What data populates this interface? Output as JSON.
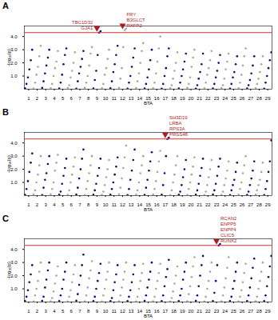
{
  "chart_data": [
    {
      "type": "scatter",
      "title": "A",
      "x_label": "BTA",
      "y_label": "-log₁₀(p)",
      "categories": [
        1,
        2,
        3,
        4,
        5,
        6,
        7,
        8,
        9,
        10,
        11,
        12,
        13,
        14,
        15,
        16,
        17,
        18,
        19,
        20,
        21,
        22,
        23,
        24,
        25,
        26,
        27,
        28,
        29
      ],
      "colors": [
        "#0b0b7a",
        "#a6a6a6"
      ],
      "ylim": [
        0,
        4.8
      ],
      "yticks": [
        1,
        2,
        3,
        4
      ],
      "threshold": 4.3,
      "values": [
        [
          0.08,
          0.4,
          0.9,
          1.5,
          2.2,
          3.0
        ],
        [
          0.05,
          0.5,
          1.1,
          1.7,
          2.5,
          3.3
        ],
        [
          0.1,
          0.6,
          1.2,
          1.8,
          2.4,
          3.0
        ],
        [
          0.07,
          0.4,
          1.0,
          1.6,
          2.1,
          2.9
        ],
        [
          0.06,
          0.5,
          1.1,
          1.9,
          2.6,
          3.1
        ],
        [
          0.09,
          0.3,
          0.9,
          1.4,
          2.0,
          2.8
        ],
        [
          0.05,
          0.6,
          1.2,
          1.7,
          2.3,
          2.9
        ],
        [
          0.1,
          0.5,
          1.0,
          1.8,
          2.7,
          3.2
        ],
        [
          0.06,
          0.7,
          1.4,
          2.6,
          4.3,
          4.4
        ],
        [
          0.08,
          0.4,
          1.1,
          1.6,
          2.3,
          3.0
        ],
        [
          0.07,
          0.6,
          1.3,
          1.9,
          2.6,
          3.3
        ],
        [
          0.1,
          0.8,
          1.6,
          3.2,
          4.5,
          4.6
        ],
        [
          0.05,
          0.5,
          1.0,
          1.7,
          2.4,
          3.1
        ],
        [
          0.09,
          0.6,
          1.2,
          2.0,
          2.9,
          3.5
        ],
        [
          0.06,
          0.4,
          0.9,
          1.5,
          2.2,
          3.0
        ],
        [
          0.08,
          0.5,
          1.2,
          2.1,
          3.1,
          4.0
        ],
        [
          0.05,
          0.4,
          1.0,
          1.6,
          2.5,
          3.1
        ],
        [
          0.07,
          0.3,
          0.8,
          1.4,
          2.0,
          2.8
        ],
        [
          0.06,
          0.5,
          1.0,
          1.5,
          2.1,
          2.7
        ],
        [
          0.1,
          0.4,
          0.9,
          1.7,
          2.4,
          3.0
        ],
        [
          0.05,
          0.3,
          0.8,
          1.3,
          1.9,
          2.7
        ],
        [
          0.07,
          0.5,
          1.1,
          1.6,
          2.2,
          2.9
        ],
        [
          0.06,
          0.4,
          0.9,
          1.4,
          2.0,
          2.6
        ],
        [
          0.09,
          0.3,
          0.8,
          1.5,
          2.1,
          2.7
        ],
        [
          0.05,
          0.4,
          0.9,
          1.3,
          1.9,
          2.5
        ],
        [
          0.08,
          0.5,
          1.1,
          1.8,
          2.5,
          3.1
        ],
        [
          0.06,
          0.3,
          0.7,
          1.2,
          1.8,
          2.5
        ],
        [
          0.07,
          0.4,
          0.8,
          1.3,
          1.9,
          2.5
        ],
        [
          0.05,
          0.5,
          1.0,
          1.6,
          2.2,
          2.8
        ]
      ],
      "annotations": [
        {
          "x": 9,
          "y": 4.4,
          "labels": [
            "GJA1",
            "TBC1D32"
          ]
        },
        {
          "x": 12,
          "y": 4.6,
          "labels": [
            "RXFP2",
            "B3GLCT",
            "FRY"
          ]
        }
      ]
    },
    {
      "type": "scatter",
      "title": "B",
      "x_label": "BTA",
      "y_label": "-log₁₀(p)",
      "categories": [
        1,
        2,
        3,
        4,
        5,
        6,
        7,
        8,
        9,
        10,
        11,
        12,
        13,
        14,
        15,
        16,
        17,
        18,
        19,
        20,
        21,
        22,
        23,
        24,
        25,
        26,
        27,
        28,
        29
      ],
      "colors": [
        "#0b0b7a",
        "#a6a6a6"
      ],
      "ylim": [
        0,
        4.8
      ],
      "yticks": [
        1,
        2,
        3,
        4
      ],
      "threshold": 4.3,
      "values": [
        [
          0.06,
          0.5,
          1.1,
          1.8,
          2.5,
          3.2
        ],
        [
          0.08,
          0.4,
          1.0,
          1.6,
          2.3,
          3.0
        ],
        [
          0.05,
          0.6,
          1.2,
          1.7,
          2.4,
          3.0
        ],
        [
          0.1,
          0.5,
          1.0,
          1.9,
          2.5,
          3.1
        ],
        [
          0.07,
          0.3,
          0.9,
          1.5,
          2.1,
          2.8
        ],
        [
          0.06,
          0.4,
          1.0,
          1.6,
          2.2,
          2.9
        ],
        [
          0.09,
          0.6,
          1.3,
          2.0,
          2.8,
          3.5
        ],
        [
          0.05,
          0.5,
          1.1,
          1.7,
          2.3,
          3.0
        ],
        [
          0.08,
          0.4,
          0.9,
          1.5,
          2.1,
          2.8
        ],
        [
          0.06,
          0.3,
          0.8,
          1.4,
          2.0,
          2.7
        ],
        [
          0.07,
          0.5,
          1.0,
          1.6,
          2.2,
          2.9
        ],
        [
          0.1,
          0.6,
          1.3,
          2.1,
          2.9,
          3.8
        ],
        [
          0.05,
          0.5,
          1.2,
          1.9,
          2.7,
          3.5
        ],
        [
          0.08,
          0.4,
          1.0,
          1.7,
          2.3,
          3.0
        ],
        [
          0.06,
          0.6,
          1.2,
          1.9,
          2.6,
          3.3
        ],
        [
          0.09,
          0.5,
          1.1,
          1.8,
          2.6,
          3.4
        ],
        [
          0.07,
          0.8,
          1.7,
          3.0,
          4.3,
          4.4
        ],
        [
          0.05,
          0.4,
          1.0,
          1.6,
          2.3,
          3.0
        ],
        [
          0.08,
          0.3,
          0.8,
          1.4,
          2.0,
          2.7
        ],
        [
          0.06,
          0.5,
          1.0,
          1.6,
          2.2,
          2.9
        ],
        [
          0.07,
          0.4,
          0.9,
          1.5,
          2.1,
          2.8
        ],
        [
          0.05,
          0.3,
          0.8,
          1.4,
          2.0,
          2.7
        ],
        [
          0.09,
          0.4,
          0.9,
          1.5,
          2.2,
          2.8
        ],
        [
          0.06,
          0.3,
          0.8,
          1.3,
          1.9,
          2.6
        ],
        [
          0.05,
          0.4,
          0.8,
          1.2,
          1.8,
          2.5
        ],
        [
          0.08,
          0.5,
          1.0,
          1.7,
          2.3,
          3.0
        ],
        [
          0.06,
          0.3,
          0.8,
          1.3,
          1.9,
          2.6
        ],
        [
          0.07,
          0.4,
          0.8,
          1.2,
          1.8,
          2.5
        ],
        [
          0.05,
          0.5,
          1.1,
          1.8,
          2.6,
          4.2
        ]
      ],
      "annotations": [
        {
          "x": 17,
          "y": 4.4,
          "labels": [
            "PRSS48",
            "RPS3A",
            "LRBA",
            "SH3D19"
          ]
        }
      ]
    },
    {
      "type": "scatter",
      "title": "C",
      "x_label": "BTA",
      "y_label": "-log₁₀(p)",
      "categories": [
        1,
        2,
        3,
        4,
        5,
        6,
        7,
        8,
        9,
        10,
        11,
        12,
        13,
        14,
        15,
        16,
        17,
        18,
        19,
        20,
        21,
        22,
        23,
        24,
        25,
        26,
        27,
        28,
        29
      ],
      "colors": [
        "#0b0b7a",
        "#a6a6a6"
      ],
      "ylim": [
        0,
        4.8
      ],
      "yticks": [
        1,
        2,
        3,
        4
      ],
      "threshold": 4.3,
      "values": [
        [
          0.07,
          0.4,
          0.9,
          1.5,
          2.1,
          2.8
        ],
        [
          0.05,
          0.5,
          1.0,
          1.6,
          2.3,
          3.0
        ],
        [
          0.09,
          0.4,
          1.1,
          1.7,
          2.4,
          3.0
        ],
        [
          0.06,
          0.3,
          0.8,
          1.4,
          2.0,
          2.7
        ],
        [
          0.08,
          0.5,
          1.0,
          1.7,
          2.3,
          3.0
        ],
        [
          0.05,
          0.4,
          0.9,
          1.5,
          2.1,
          2.8
        ],
        [
          0.1,
          0.6,
          1.3,
          2.0,
          2.8,
          3.6
        ],
        [
          0.06,
          0.5,
          1.1,
          1.8,
          2.4,
          3.1
        ],
        [
          0.07,
          0.4,
          1.0,
          1.6,
          2.2,
          2.9
        ],
        [
          0.05,
          0.5,
          1.0,
          1.7,
          2.3,
          3.0
        ],
        [
          0.08,
          0.3,
          0.9,
          1.5,
          2.1,
          2.8
        ],
        [
          0.06,
          0.5,
          1.1,
          1.7,
          2.3,
          3.0
        ],
        [
          0.07,
          0.4,
          0.9,
          1.5,
          2.1,
          2.8
        ],
        [
          0.05,
          0.4,
          1.0,
          1.6,
          2.2,
          2.9
        ],
        [
          0.09,
          0.5,
          1.1,
          1.7,
          2.3,
          3.0
        ],
        [
          0.06,
          0.4,
          1.0,
          1.6,
          2.2,
          2.9
        ],
        [
          0.08,
          0.5,
          1.2,
          1.9,
          2.5,
          3.2
        ],
        [
          0.05,
          0.3,
          0.8,
          1.4,
          2.0,
          2.7
        ],
        [
          0.07,
          0.5,
          1.0,
          1.7,
          2.3,
          3.0
        ],
        [
          0.06,
          0.6,
          1.2,
          1.9,
          2.7,
          3.4
        ],
        [
          0.09,
          0.5,
          1.2,
          2.0,
          2.8,
          3.5
        ],
        [
          0.05,
          0.4,
          1.0,
          1.6,
          2.3,
          3.0
        ],
        [
          0.08,
          0.7,
          1.6,
          2.8,
          4.3,
          4.4
        ],
        [
          0.06,
          0.5,
          1.1,
          1.8,
          2.6,
          3.4
        ],
        [
          0.07,
          0.4,
          1.0,
          1.6,
          2.3,
          3.0
        ],
        [
          0.05,
          0.4,
          0.9,
          1.5,
          2.2,
          2.9
        ],
        [
          0.08,
          0.5,
          1.1,
          1.8,
          2.6,
          3.3
        ],
        [
          0.06,
          0.4,
          1.0,
          1.6,
          2.3,
          3.0
        ],
        [
          0.07,
          0.5,
          1.2,
          1.9,
          2.7,
          3.5
        ]
      ],
      "annotations": [
        {
          "x": 23,
          "y": 4.4,
          "labels": [
            "RUNX2",
            "CLIC5",
            "ENPP4",
            "ENPP5",
            "RCAN2"
          ]
        }
      ]
    }
  ]
}
